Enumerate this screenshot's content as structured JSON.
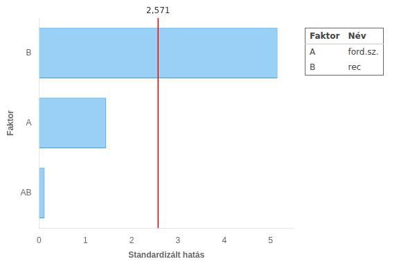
{
  "chart_data": {
    "type": "bar",
    "orientation": "horizontal",
    "categories": [
      "AB",
      "A",
      "B"
    ],
    "values": [
      0.12,
      1.45,
      5.15
    ],
    "xlabel": "Standardizált hatás",
    "ylabel": "Faktor",
    "xlim": [
      0,
      5.5
    ],
    "xticks": [
      0,
      1,
      2,
      3,
      4,
      5
    ],
    "grid": false,
    "vline": {
      "x": 2.571,
      "label": "2,571",
      "color": "#ff0000"
    },
    "legend_table": {
      "columns": [
        "Faktor",
        "Név"
      ],
      "rows": [
        [
          "A",
          "ford.sz."
        ],
        [
          "B",
          "rec"
        ]
      ]
    }
  }
}
